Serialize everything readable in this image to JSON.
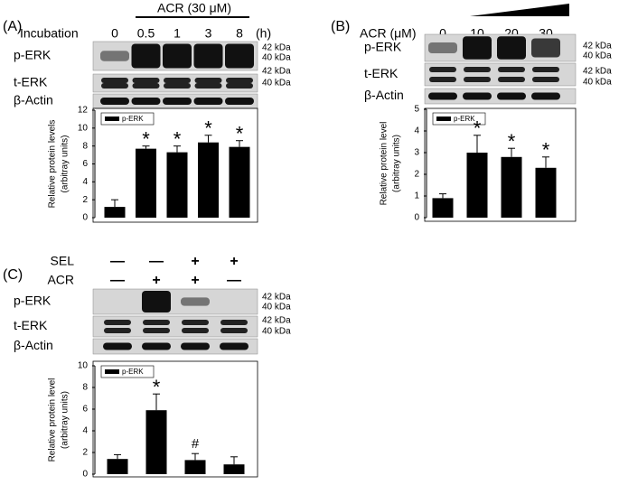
{
  "panels": [
    {
      "label": "(A)",
      "condition_label": "Incubation",
      "conditions": [
        "0",
        "0.5",
        "1",
        "3",
        "8"
      ],
      "unit": "(h)",
      "treatment": "ACR (30 μM)",
      "rows": [
        "p-ERK",
        "t-ERK",
        "β-Actin"
      ],
      "markers": [
        "42 kDa",
        "40 kDa",
        "42 kDa",
        "40 kDa"
      ]
    },
    {
      "label": "(B)",
      "condition_label": "ACR (μM)",
      "conditions": [
        "0",
        "10",
        "20",
        "30"
      ],
      "rows": [
        "p-ERK",
        "t-ERK",
        "β-Actin"
      ],
      "markers": [
        "42 kDa",
        "40 kDa",
        "42 kDa",
        "40 kDa"
      ]
    },
    {
      "label": "(C)",
      "treatments": [
        {
          "name": "SEL",
          "signs": [
            "—",
            "—",
            "+",
            "+"
          ]
        },
        {
          "name": "ACR",
          "signs": [
            "—",
            "+",
            "+",
            "—"
          ]
        }
      ],
      "rows": [
        "p-ERK",
        "t-ERK",
        "β-Actin"
      ],
      "markers": [
        "42 kDa",
        "40 kDa",
        "42 kDa",
        "40 kDa"
      ]
    }
  ],
  "chart_data": [
    {
      "type": "bar",
      "ylabel": [
        "Relative protein levels",
        "(arbitray units)"
      ],
      "categories": [
        null,
        null,
        null,
        null,
        null
      ],
      "series": [
        {
          "name": "p-ERK",
          "color": "#000000",
          "values": [
            1.2,
            7.7,
            7.3,
            8.4,
            7.9
          ],
          "errors": [
            0.8,
            0.3,
            0.7,
            0.8,
            0.7
          ]
        }
      ],
      "annotations": [
        null,
        "*",
        "*",
        "*",
        "*"
      ],
      "ylim": [
        0,
        12
      ],
      "yticks": [
        0,
        2,
        4,
        6,
        8,
        10,
        12
      ]
    },
    {
      "type": "bar",
      "ylabel": [
        "Relative protein level",
        "(arbitray units)"
      ],
      "categories": [
        null,
        null,
        null,
        null
      ],
      "series": [
        {
          "name": "p-ERK",
          "color": "#000000",
          "values": [
            0.9,
            3.0,
            2.8,
            2.3
          ],
          "errors": [
            0.2,
            0.8,
            0.4,
            0.5
          ]
        }
      ],
      "annotations": [
        null,
        "*",
        "*",
        "*"
      ],
      "ylim": [
        0,
        5
      ],
      "yticks": [
        0,
        1,
        2,
        3,
        4,
        5
      ]
    },
    {
      "type": "bar",
      "ylabel": [
        "Relative protein level",
        "(arbitray units)"
      ],
      "categories": [
        null,
        null,
        null,
        null
      ],
      "series": [
        {
          "name": "p-ERK",
          "color": "#000000",
          "values": [
            1.4,
            5.9,
            1.3,
            0.9
          ],
          "errors": [
            0.4,
            1.5,
            0.6,
            0.7
          ]
        }
      ],
      "annotations": [
        null,
        "*",
        "#",
        null
      ],
      "ylim": [
        0,
        10
      ],
      "yticks": [
        0,
        2,
        4,
        6,
        8,
        10
      ]
    }
  ]
}
